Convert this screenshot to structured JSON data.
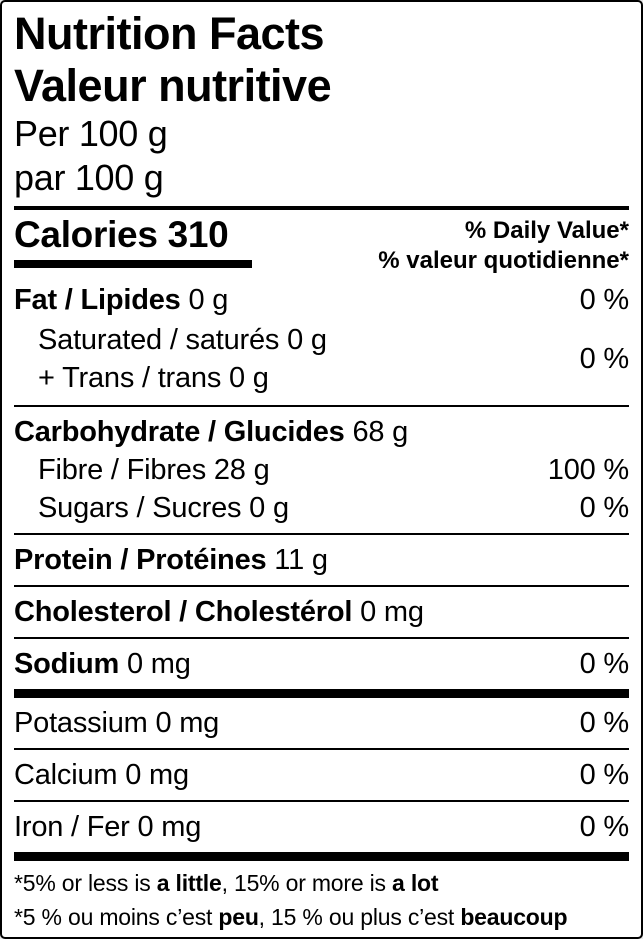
{
  "label": {
    "title_en": "Nutrition Facts",
    "title_fr": "Valeur nutritive",
    "serving_en": "Per 100 g",
    "serving_fr": "par 100 g",
    "calories_label": "Calories",
    "calories_value": "310",
    "daily_value_header_en": "% Daily Value*",
    "daily_value_header_fr": "% valeur quotidienne*",
    "nutrients": {
      "fat": {
        "name": "Fat / Lipides",
        "amount": "0 g",
        "dv": "0 %"
      },
      "saturated_trans": {
        "line1": "Saturated / saturés 0 g",
        "line2": "+ Trans / trans 0 g",
        "dv": "0 %"
      },
      "carbohydrate": {
        "name": "Carbohydrate / Glucides",
        "amount": "68 g"
      },
      "fibre": {
        "name": "Fibre / Fibres 28 g",
        "dv": "100 %"
      },
      "sugars": {
        "name": "Sugars / Sucres 0 g",
        "dv": "0 %"
      },
      "protein": {
        "name": "Protein / Protéines",
        "amount": "11 g"
      },
      "cholesterol": {
        "name": "Cholesterol / Cholestérol",
        "amount": "0 mg"
      },
      "sodium": {
        "name": "Sodium",
        "amount": "0 mg",
        "dv": "0 %"
      },
      "potassium": {
        "name": "Potassium 0 mg",
        "dv": "0 %"
      },
      "calcium": {
        "name": "Calcium 0 mg",
        "dv": "0 %"
      },
      "iron": {
        "name": "Iron / Fer 0 mg",
        "dv": "0 %"
      }
    },
    "footnote_en": {
      "pre": "*5% or less is ",
      "bold1": "a little",
      "mid": ", 15% or more is ",
      "bold2": "a lot"
    },
    "footnote_fr": {
      "pre": "*5 % ou moins c’est ",
      "bold1": "peu",
      "mid": ", 15 % ou plus c’est ",
      "bold2": "beaucoup"
    },
    "colors": {
      "ink": "#000000",
      "background": "#ffffff"
    }
  }
}
